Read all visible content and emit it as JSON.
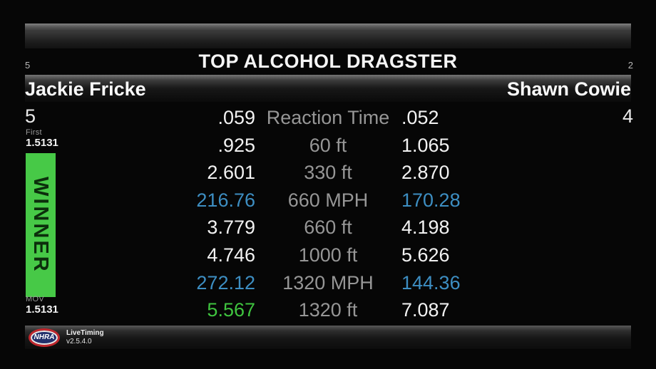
{
  "header": {
    "class_title": "TOP ALCOHOL DRAGSTER",
    "left_round_num": "5",
    "right_round_num": "2",
    "left_driver": "Jackie Fricke",
    "right_driver": "Shawn Cowie"
  },
  "left_lane": {
    "lane_number": "5",
    "first_label": "First",
    "first_value": "1.5131",
    "winner_label": "WINNER",
    "mov_label": "MOV",
    "mov_value": "1.5131"
  },
  "right_lane": {
    "lane_number": "4"
  },
  "timing_rows": [
    {
      "left": ".059",
      "label": "Reaction Time",
      "right": ".052",
      "left_color": "white",
      "right_color": "white"
    },
    {
      "left": ".925",
      "label": "60 ft",
      "right": "1.065",
      "left_color": "white",
      "right_color": "white"
    },
    {
      "left": "2.601",
      "label": "330 ft",
      "right": "2.870",
      "left_color": "white",
      "right_color": "white"
    },
    {
      "left": "216.76",
      "label": "660 MPH",
      "right": "170.28",
      "left_color": "blue",
      "right_color": "blue"
    },
    {
      "left": "3.779",
      "label": "660 ft",
      "right": "4.198",
      "left_color": "white",
      "right_color": "white"
    },
    {
      "left": "4.746",
      "label": "1000 ft",
      "right": "5.626",
      "left_color": "white",
      "right_color": "white"
    },
    {
      "left": "272.12",
      "label": "1320 MPH",
      "right": "144.36",
      "left_color": "blue",
      "right_color": "blue"
    },
    {
      "left": "5.567",
      "label": "1320 ft",
      "right": "7.087",
      "left_color": "green",
      "right_color": "white"
    }
  ],
  "footer": {
    "logo_text": "NHRA",
    "app_name": "LiveTiming",
    "version": "v2.5.4.0"
  },
  "colors": {
    "speed_blue": "#3d8ec2",
    "best_green": "#3fc43f",
    "winner_bar_green": "#47c947",
    "label_gray": "#969696",
    "logo_red": "#c1272d",
    "logo_blue": "#22306b"
  }
}
